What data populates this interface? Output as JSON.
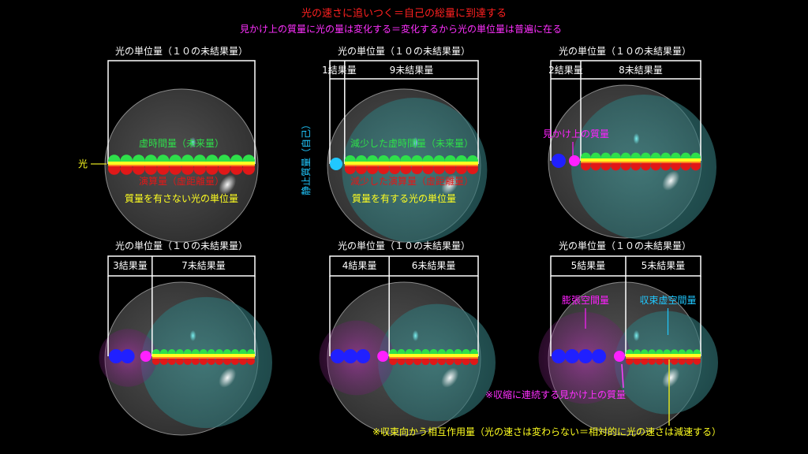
{
  "title": "光の速さに追いつく＝自己の総量に到達する",
  "subtitle": "見かけ上の質量に光の量は変化する＝変化するから光の単位量は普遍に在る",
  "colors": {
    "title": "#ff2020",
    "subtitle": "#ff30ff",
    "label": "#ffffff",
    "green": "#2ee04a",
    "red": "#e01818",
    "yellow": "#ffff20",
    "cyan": "#20c8ff",
    "blue": "#2020ff",
    "magenta": "#ff20ff"
  },
  "panels": [
    {
      "id": "p1",
      "heading": "光の単位量（１０の未結果量）",
      "segments": [],
      "split": 0,
      "light_label": "光",
      "upper_label": "虚時間量（未来量）",
      "lower_label": "演算量（虚距離量）",
      "bottom_label": "質量を有さない光の単位量",
      "mass_count": 0
    },
    {
      "id": "p2",
      "heading": "光の単位量（１０の未結果量）",
      "segments": [
        "1結果量",
        "9未結果量"
      ],
      "split": 1,
      "rest_mass_label": "静止質量（自己）",
      "upper_label": "減少した虚時間量（未来量）",
      "lower_label": "減少した演算量（虚距離量）",
      "bottom_label": "質量を有する光の単位量",
      "mass_count": 0
    },
    {
      "id": "p3",
      "heading": "光の単位量（１０の未結果量）",
      "segments": [
        "2結果量",
        "8未結果量"
      ],
      "split": 2,
      "apparent_mass_label": "見かけ上の質量",
      "mass_count": 1
    },
    {
      "id": "p4",
      "heading": "光の単位量（１０の未結果量）",
      "segments": [
        "3結果量",
        "7未結果量"
      ],
      "split": 3,
      "mass_count": 2
    },
    {
      "id": "p5",
      "heading": "光の単位量（１０の未結果量）",
      "segments": [
        "4結果量",
        "6未結果量"
      ],
      "split": 4,
      "mass_count": 3
    },
    {
      "id": "p6",
      "heading": "光の単位量（１０の未結果量）",
      "segments": [
        "5結果量",
        "5未結果量"
      ],
      "split": 5,
      "expanding_label": "膨張空間量",
      "contracting_label": "収束虚空間量",
      "mass_count": 4
    }
  ],
  "notes": {
    "continuous_mass": "※収縮に連続する見かけ上の質量",
    "interaction": "※収束向かう相互作用量（光の速さは変わらない＝相対的に光の速さは減速する）"
  }
}
